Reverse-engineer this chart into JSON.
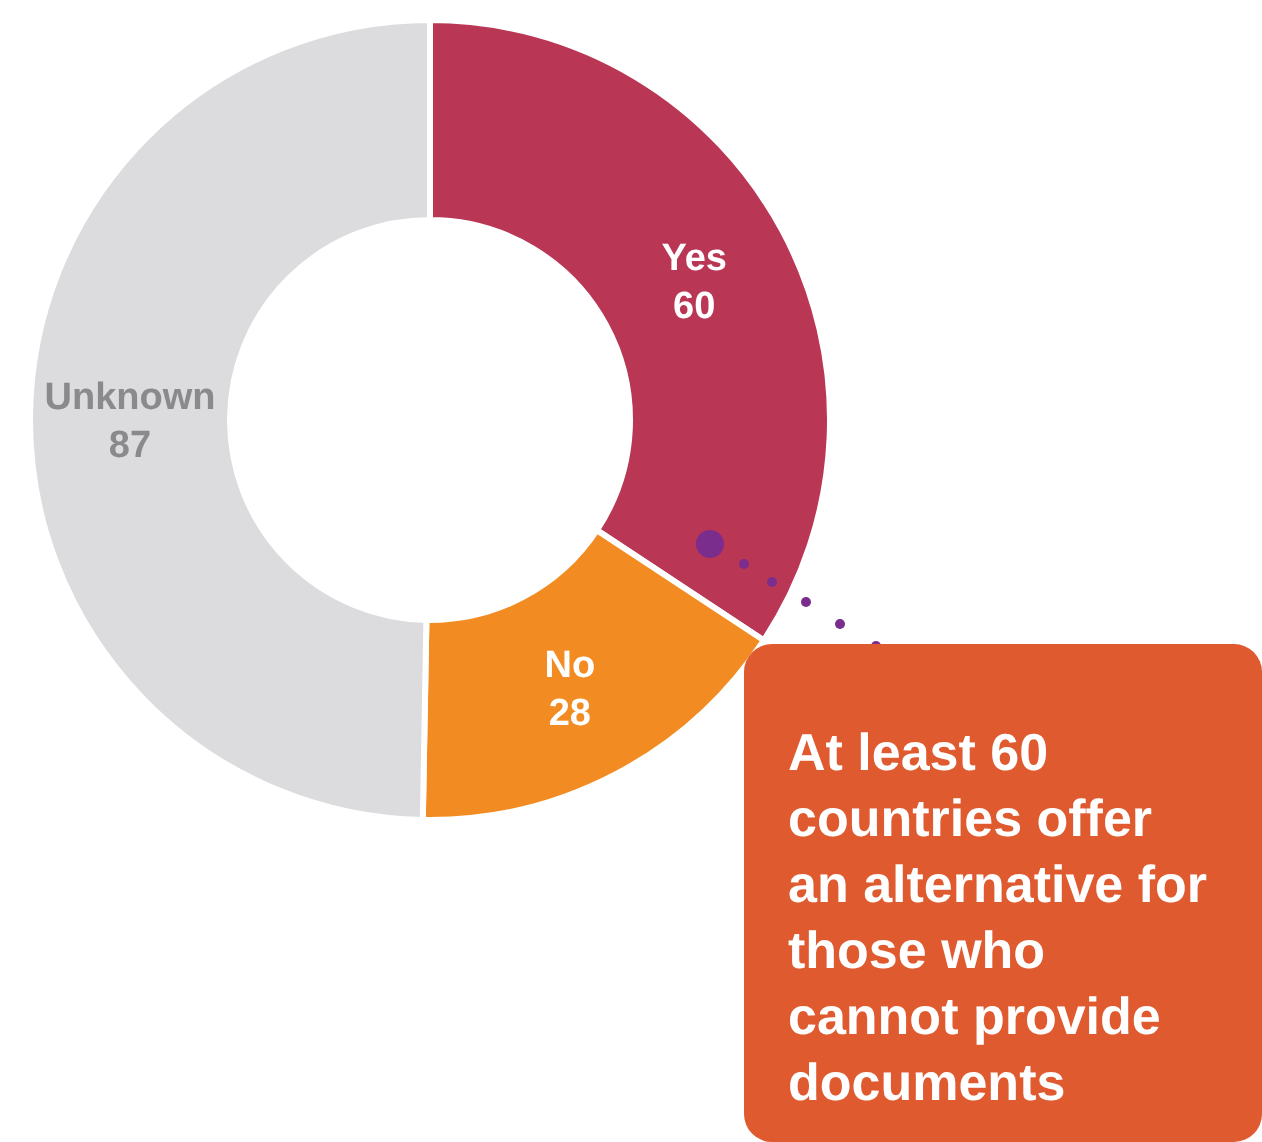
{
  "chart_data": {
    "type": "donut",
    "categories": [
      "Yes",
      "No",
      "Unknown"
    ],
    "values": [
      60,
      28,
      87
    ],
    "colors": [
      "#b93654",
      "#f28c22",
      "#dcdcde"
    ],
    "data_labels": true,
    "annotations": [
      "At least 60 countries offer an alternative for those who cannot provide documents"
    ]
  }
}
